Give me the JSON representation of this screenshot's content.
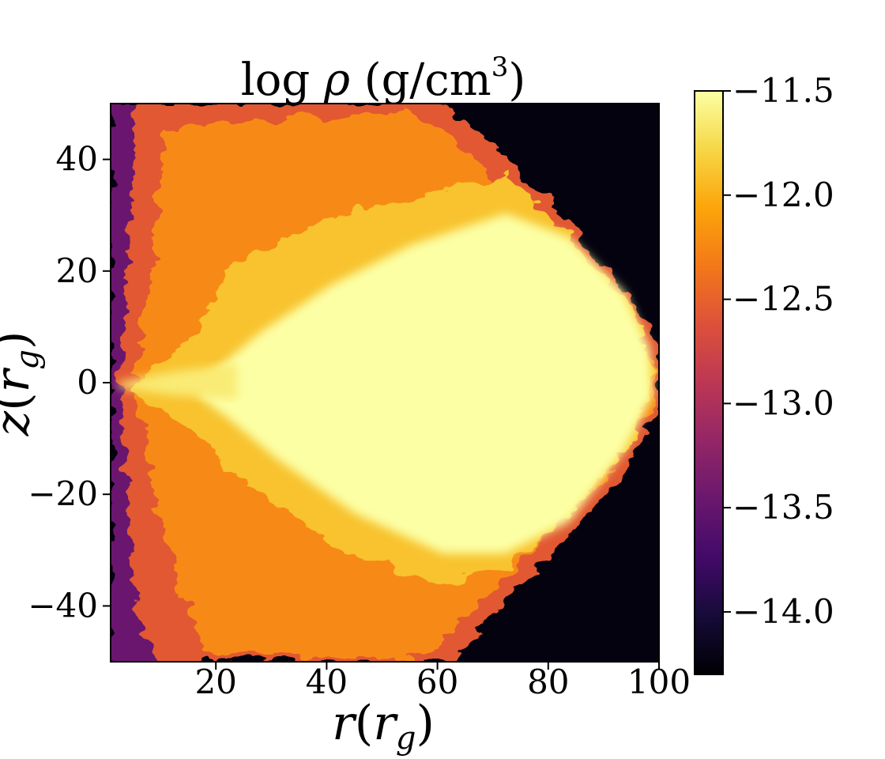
{
  "chart_data": {
    "type": "heatmap",
    "title": "log ρ (g/cm³)",
    "title_parts": {
      "prefix": "log ",
      "symbol": "ρ",
      "units_open": " (g/cm",
      "units_sup": "3",
      "units_close": ")"
    },
    "xlabel": "r(r_g)",
    "xlabel_parts": {
      "var": "r",
      "open": "(",
      "sym": "r",
      "sub": "g",
      "close": ")"
    },
    "ylabel": "z(r_g)",
    "ylabel_parts": {
      "var": "z",
      "open": "(",
      "sym": "r",
      "sub": "g",
      "close": ")"
    },
    "xlim": [
      1,
      100
    ],
    "ylim": [
      -50,
      50
    ],
    "xticks": [
      20,
      40,
      60,
      80,
      100
    ],
    "xtick_labels": [
      "20",
      "40",
      "60",
      "80",
      "100"
    ],
    "yticks": [
      40,
      20,
      0,
      -20,
      -40
    ],
    "ytick_labels": [
      "40",
      "20",
      "0",
      "−20",
      "−40"
    ],
    "colormap": "inferno",
    "color_range": [
      -14.3,
      -11.5
    ],
    "colorbar_ticks": [
      -11.5,
      -12.0,
      -12.5,
      -13.0,
      -13.5,
      -14.0
    ],
    "colorbar_tick_labels": [
      "−11.5",
      "−12.0",
      "−12.5",
      "−13.0",
      "−13.5",
      "−14.0"
    ],
    "colormap_stops": [
      {
        "pos": 0.0,
        "color": "#000004"
      },
      {
        "pos": 0.1,
        "color": "#160b39"
      },
      {
        "pos": 0.2,
        "color": "#420a68"
      },
      {
        "pos": 0.3,
        "color": "#6a176e"
      },
      {
        "pos": 0.4,
        "color": "#932667"
      },
      {
        "pos": 0.5,
        "color": "#bc3754"
      },
      {
        "pos": 0.6,
        "color": "#dd513a"
      },
      {
        "pos": 0.7,
        "color": "#f37819"
      },
      {
        "pos": 0.8,
        "color": "#fca50a"
      },
      {
        "pos": 0.9,
        "color": "#f6d746"
      },
      {
        "pos": 1.0,
        "color": "#fcffa4"
      }
    ],
    "grid": false,
    "legend": "colorbar-right"
  }
}
